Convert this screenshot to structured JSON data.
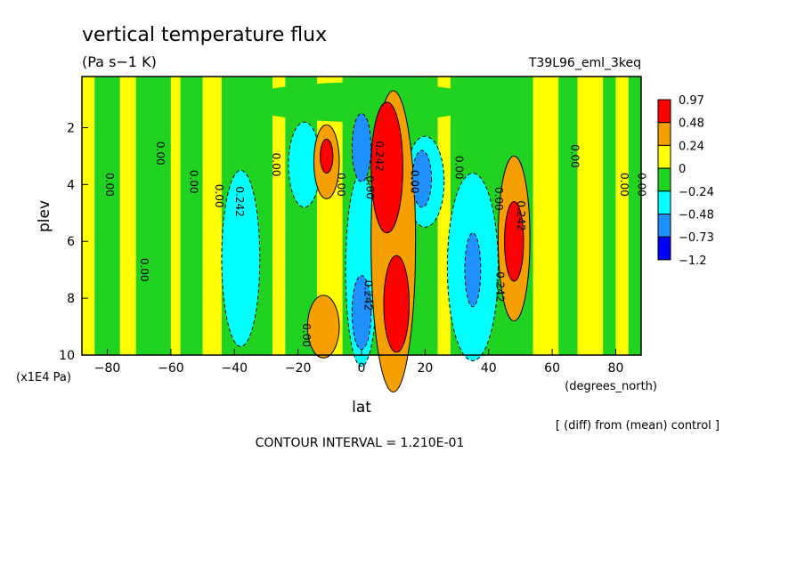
{
  "chart_data": {
    "type": "heatmap",
    "title": "vertical temperature flux",
    "units": "(Pa s−1 K)",
    "run_label": "T39L96_eml_3keq",
    "xlabel": "lat",
    "xunits": "(degrees_north)",
    "ylabel": "plev",
    "yunits": "(x1E4 Pa)",
    "diff_note": "[ (diff) from (mean) control ]",
    "contour_interval": "CONTOUR INTERVAL = 1.210E-01",
    "xlim": [
      -88,
      88
    ],
    "ylim": [
      0.2,
      10
    ],
    "y_inverted": true,
    "x_ticks": [
      -80,
      -60,
      -40,
      -20,
      0,
      20,
      40,
      60,
      80
    ],
    "y_ticks": [
      2,
      4,
      6,
      8,
      10
    ],
    "colorbar": {
      "labels": [
        "0.97",
        "0.48",
        "0.24",
        "0",
        "−0.24",
        "−0.48",
        "−0.73",
        "−1.2"
      ],
      "colors": [
        "#ff0000",
        "#f5a000",
        "#ffff00",
        "#21d321",
        "#00ffff",
        "#1e90ff",
        "#0000ff"
      ]
    },
    "contour_labels": [
      {
        "text": "0.00",
        "lat": -80.5,
        "plev": 4.0
      },
      {
        "text": "0.00",
        "lat": -64.5,
        "plev": 2.9
      },
      {
        "text": "0.00",
        "lat": -54.0,
        "plev": 3.9
      },
      {
        "text": "0.00",
        "lat": -46.0,
        "plev": 4.4
      },
      {
        "text": "0.242",
        "lat": -39.5,
        "plev": 4.6
      },
      {
        "text": "0.00",
        "lat": -28.0,
        "plev": 3.3
      },
      {
        "text": "0.00",
        "lat": -69.5,
        "plev": 7.0
      },
      {
        "text": "0.00",
        "lat": -7.5,
        "plev": 4.0
      },
      {
        "text": "0.00",
        "lat": 1.5,
        "plev": 4.1
      },
      {
        "text": "0.242",
        "lat": 4.5,
        "plev": 3.0
      },
      {
        "text": "0.00",
        "lat": 15.5,
        "plev": 3.9
      },
      {
        "text": "0.00",
        "lat": 29.5,
        "plev": 3.4
      },
      {
        "text": "0.00",
        "lat": 42.0,
        "plev": 4.5
      },
      {
        "text": "0.242",
        "lat": 49.0,
        "plev": 5.1
      },
      {
        "text": "0.242",
        "lat": 42.5,
        "plev": 7.6
      },
      {
        "text": "0.242",
        "lat": 1.0,
        "plev": 7.9
      },
      {
        "text": "0.00",
        "lat": -18.5,
        "plev": 9.3
      },
      {
        "text": "0.00",
        "lat": 66.0,
        "plev": 3.0
      },
      {
        "text": "0.00",
        "lat": 81.5,
        "plev": 4.0
      },
      {
        "text": "0.00",
        "lat": 87.0,
        "plev": 4.0
      }
    ],
    "features": [
      {
        "name": "red_core_north",
        "lat": 8,
        "plev": 3.4,
        "rx": 5,
        "ry": 2.3,
        "value": 1.0
      },
      {
        "name": "red_lower_north",
        "lat": 11,
        "plev": 8.2,
        "rx": 4,
        "ry": 1.7,
        "value": 0.95
      },
      {
        "name": "orange_tower_north",
        "lat": 10,
        "plev": 6.0,
        "rx": 7,
        "ry": 5.3,
        "value": 0.45
      },
      {
        "name": "red_upper_south",
        "lat": -11,
        "plev": 3.0,
        "rx": 2,
        "ry": 0.6,
        "value": 0.7
      },
      {
        "name": "orange_upper_south",
        "lat": -11,
        "plev": 3.2,
        "rx": 4,
        "ry": 1.3,
        "value": 0.4
      },
      {
        "name": "orange_lower_south",
        "lat": -12,
        "plev": 9.0,
        "rx": 5,
        "ry": 1.1,
        "value": 0.35
      },
      {
        "name": "red_47N",
        "lat": 48,
        "plev": 6.0,
        "rx": 3,
        "ry": 1.4,
        "value": 0.8
      },
      {
        "name": "orange_47N",
        "lat": 48,
        "plev": 5.9,
        "rx": 5,
        "ry": 2.9,
        "value": 0.45
      },
      {
        "name": "blue_eq_upper",
        "lat": 0,
        "plev": 2.7,
        "rx": 3,
        "ry": 1.2,
        "value": -0.7
      },
      {
        "name": "blue_eq_lower",
        "lat": 0,
        "plev": 8.5,
        "rx": 3,
        "ry": 1.3,
        "value": -0.7
      },
      {
        "name": "cyan_eq",
        "lat": 0,
        "plev": 7.0,
        "rx": 5,
        "ry": 3.4,
        "value": -0.35
      },
      {
        "name": "blue_20N",
        "lat": 19,
        "plev": 3.8,
        "rx": 3,
        "ry": 1.0,
        "value": -0.7
      },
      {
        "name": "cyan_20N",
        "lat": 20,
        "plev": 3.9,
        "rx": 6,
        "ry": 1.6,
        "value": -0.4
      },
      {
        "name": "blue_35N",
        "lat": 35,
        "plev": 7.0,
        "rx": 2.5,
        "ry": 1.3,
        "value": -0.7
      },
      {
        "name": "cyan_35N",
        "lat": 35,
        "plev": 6.9,
        "rx": 8,
        "ry": 3.3,
        "value": -0.4
      },
      {
        "name": "cyan_38S",
        "lat": -38,
        "plev": 6.6,
        "rx": 6,
        "ry": 3.1,
        "value": -0.4
      },
      {
        "name": "cyan_18S",
        "lat": -18,
        "plev": 3.3,
        "rx": 5,
        "ry": 1.5,
        "value": -0.35
      }
    ]
  }
}
